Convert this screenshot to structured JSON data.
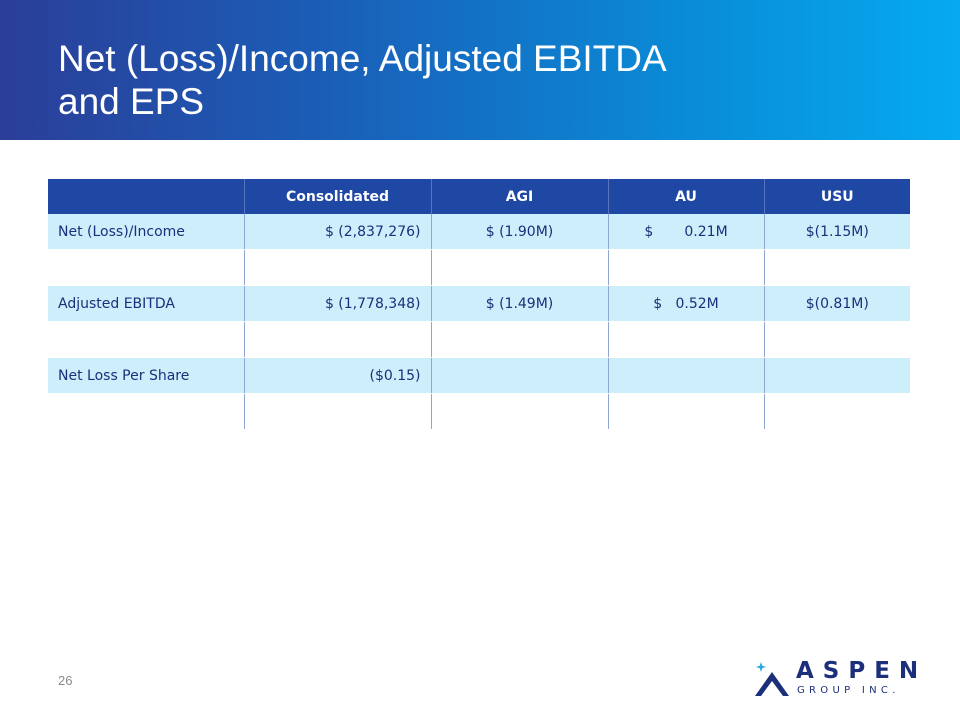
{
  "slide": {
    "title_line1": "Net (Loss)/Income, Adjusted EBITDA",
    "title_line2": "and EPS",
    "page_number": "26"
  },
  "table": {
    "headers": [
      "",
      "Consolidated",
      "AGI",
      "AU",
      "USU"
    ],
    "rows": [
      [
        "Net (Loss)/Income",
        "$  (2,837,276)",
        "$ (1.90M)",
        "$       0.21M",
        "$(1.15M)"
      ],
      [
        "",
        "",
        "",
        "",
        ""
      ],
      [
        "Adjusted EBITDA",
        "$  (1,778,348)",
        "$ (1.49M)",
        "$   0.52M",
        "$(0.81M)"
      ],
      [
        "",
        "",
        "",
        "",
        ""
      ],
      [
        "Net Loss Per Share",
        "($0.15)",
        "",
        "",
        ""
      ],
      [
        "",
        "",
        "",
        "",
        ""
      ]
    ]
  },
  "logo": {
    "name": "ASPEN",
    "subtitle": "GROUP INC."
  },
  "colors": {
    "header_gradient_start": "#2b3e98",
    "header_gradient_end": "#05aaf0",
    "table_header": "#1f47a4",
    "row_band": "#cdeefb",
    "text": "#1c2f7a",
    "logo_star": "#2aa9e0"
  }
}
